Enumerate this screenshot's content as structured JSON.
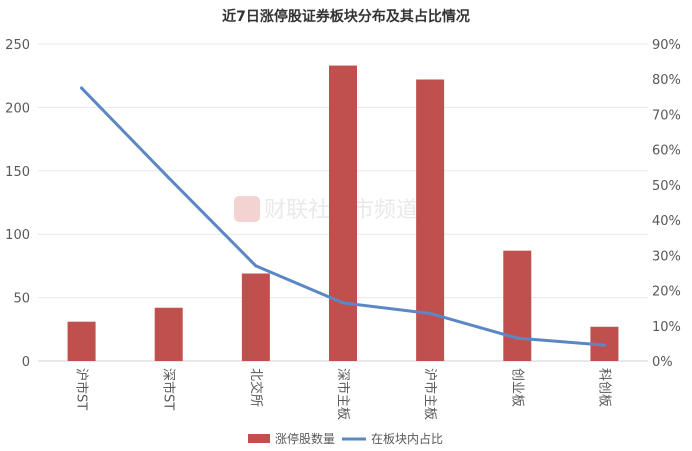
{
  "chart_data": {
    "type": "bar",
    "title": "近7日涨停股证券板块分布及其占比情况",
    "categories": [
      "沪市ST",
      "深市ST",
      "北交所",
      "深市主板",
      "沪市主板",
      "创业板",
      "科创板"
    ],
    "series": [
      {
        "name": "涨停股数量",
        "type": "bar",
        "axis": "left",
        "color": "#c0504d",
        "values": [
          31,
          42,
          69,
          233,
          222,
          87,
          27
        ]
      },
      {
        "name": "在板块内占比",
        "type": "line",
        "axis": "right",
        "color": "#5b87c5",
        "values": [
          0.775,
          0.52,
          0.27,
          0.165,
          0.135,
          0.065,
          0.045
        ]
      }
    ],
    "y_left": {
      "ylim": [
        0,
        250
      ],
      "ticks": [
        "0",
        "50",
        "100",
        "150",
        "200",
        "250"
      ]
    },
    "y_right": {
      "ylim": [
        0,
        0.9
      ],
      "ticks": [
        "0%",
        "10%",
        "20%",
        "30%",
        "40%",
        "50%",
        "60%",
        "70%",
        "80%",
        "90%"
      ]
    },
    "grid": true,
    "legend_position": "bottom"
  },
  "watermark": "财联社股市频道"
}
